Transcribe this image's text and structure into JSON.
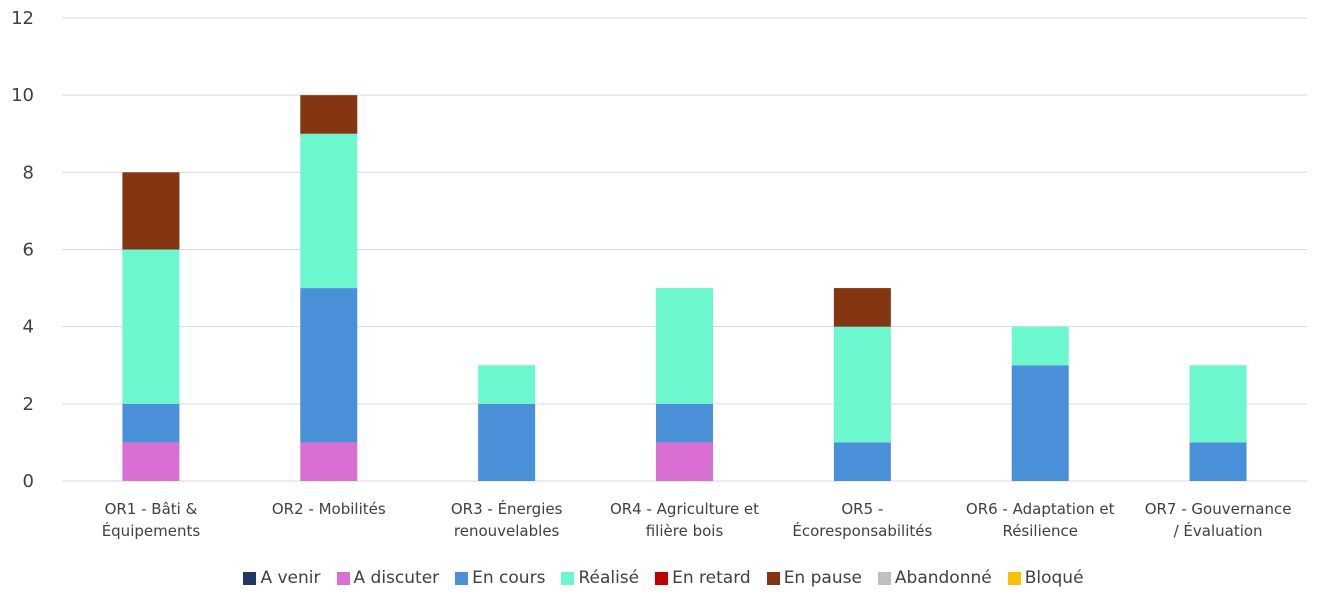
{
  "chart_data": {
    "type": "bar",
    "stacked": true,
    "title": "",
    "xlabel": "",
    "ylabel": "",
    "ylim": [
      0,
      12
    ],
    "yticks": [
      0,
      2,
      4,
      6,
      8,
      10,
      12
    ],
    "grid": true,
    "legend_position": "bottom",
    "categories": [
      [
        "OR1 - Bâti &",
        "Équipements"
      ],
      [
        "OR2 - Mobilités"
      ],
      [
        "OR3 - Énergies",
        "renouvelables"
      ],
      [
        "OR4 - Agriculture et",
        "filière bois"
      ],
      [
        "OR5 -",
        "Écoresponsabilités"
      ],
      [
        "OR6 - Adaptation et",
        "Résilience"
      ],
      [
        "OR7 - Gouvernance",
        "/ Évaluation"
      ]
    ],
    "series": [
      {
        "name": "A venir",
        "color": "#1f3864",
        "values": [
          0,
          0,
          0,
          0,
          0,
          0,
          0
        ]
      },
      {
        "name": "A discuter",
        "color": "#d96fd2",
        "values": [
          1,
          1,
          0,
          1,
          0,
          0,
          0
        ]
      },
      {
        "name": "En cours",
        "color": "#4a90d9",
        "values": [
          1,
          4,
          2,
          1,
          1,
          3,
          1
        ]
      },
      {
        "name": "Réalisé",
        "color": "#6cf7cf",
        "values": [
          4,
          4,
          1,
          3,
          3,
          1,
          2
        ]
      },
      {
        "name": "En retard",
        "color": "#c00000",
        "values": [
          0,
          0,
          0,
          0,
          0,
          0,
          0
        ]
      },
      {
        "name": "En pause",
        "color": "#843512",
        "values": [
          2,
          1,
          0,
          0,
          1,
          0,
          0
        ]
      },
      {
        "name": "Abandonné",
        "color": "#bfbfbf",
        "values": [
          0,
          0,
          0,
          0,
          0,
          0,
          0
        ]
      },
      {
        "name": "Bloqué",
        "color": "#ffc000",
        "values": [
          0,
          0,
          0,
          0,
          0,
          0,
          0
        ]
      }
    ]
  }
}
